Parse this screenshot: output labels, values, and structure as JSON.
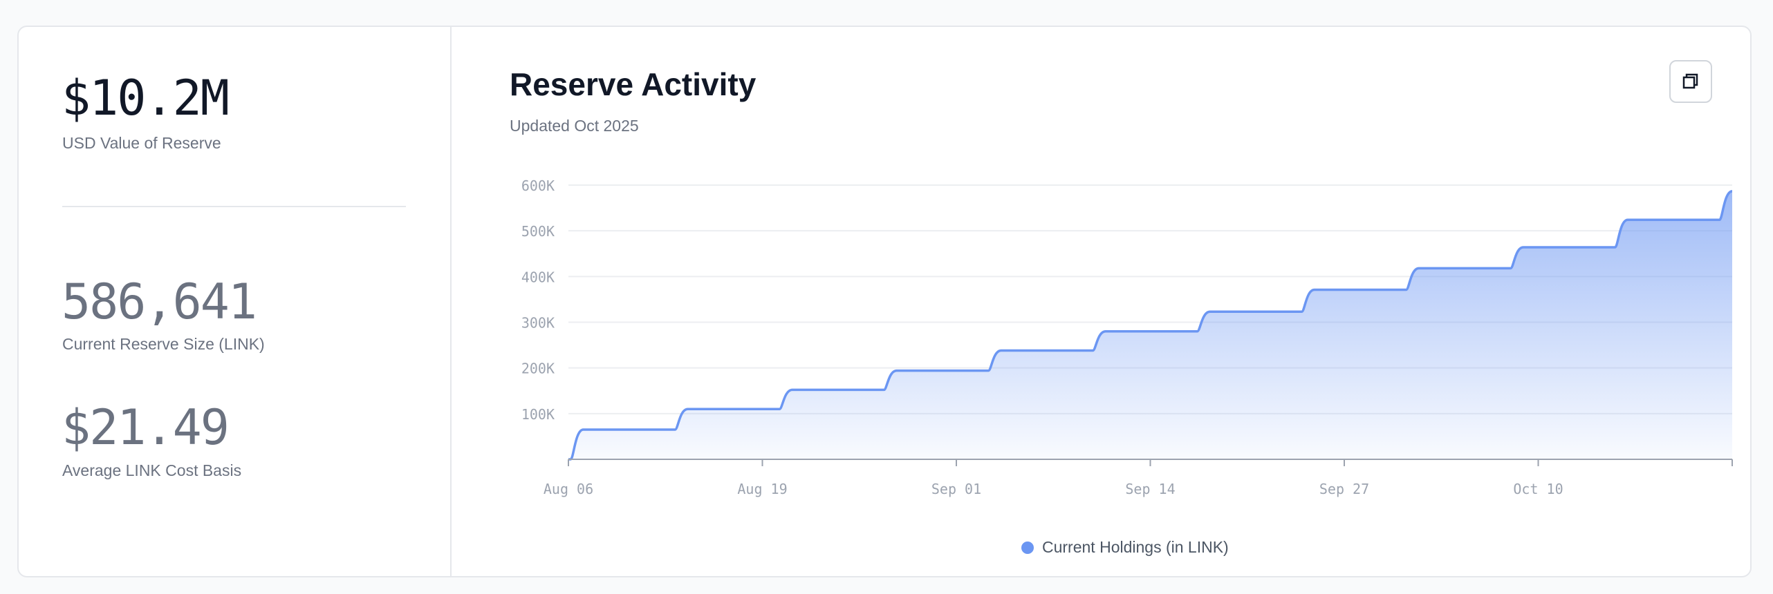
{
  "stats": [
    {
      "value": "$10.2M",
      "label": "USD Value of Reserve"
    },
    {
      "value": "586,641",
      "label": "Current Reserve Size (LINK)"
    },
    {
      "value": "$21.49",
      "label": "Average LINK Cost Basis"
    }
  ],
  "header": {
    "title": "Reserve Activity",
    "subtitle": "Updated Oct 2025",
    "copy_icon": "copy-icon"
  },
  "colors": {
    "series": "#6b96f2",
    "primary_text": "#111827",
    "muted_text": "#6b7280"
  },
  "chart_data": {
    "type": "area",
    "title": "Reserve Activity",
    "xlabel": "",
    "ylabel": "",
    "x_ticks": [
      "Aug 06",
      "Aug 19",
      "Sep 01",
      "Sep 14",
      "Sep 27",
      "Oct 10"
    ],
    "y_ticks": [
      "100K",
      "200K",
      "300K",
      "400K",
      "500K",
      "600K"
    ],
    "xlim": [
      "2025-08-06",
      "2025-10-23"
    ],
    "ylim": [
      0,
      600000
    ],
    "grid": true,
    "legend": "bottom",
    "series": [
      {
        "name": "Current Holdings (in LINK)",
        "shape": "step",
        "points": [
          {
            "date": "2025-08-06",
            "value": 0
          },
          {
            "date": "2025-08-07",
            "value": 65000
          },
          {
            "date": "2025-08-14",
            "value": 110000
          },
          {
            "date": "2025-08-21",
            "value": 152000
          },
          {
            "date": "2025-08-28",
            "value": 194000
          },
          {
            "date": "2025-09-04",
            "value": 238000
          },
          {
            "date": "2025-09-11",
            "value": 280000
          },
          {
            "date": "2025-09-18",
            "value": 323000
          },
          {
            "date": "2025-09-25",
            "value": 371000
          },
          {
            "date": "2025-10-02",
            "value": 418000
          },
          {
            "date": "2025-10-09",
            "value": 464000
          },
          {
            "date": "2025-10-16",
            "value": 524000
          },
          {
            "date": "2025-10-23",
            "value": 586641
          }
        ]
      }
    ]
  }
}
